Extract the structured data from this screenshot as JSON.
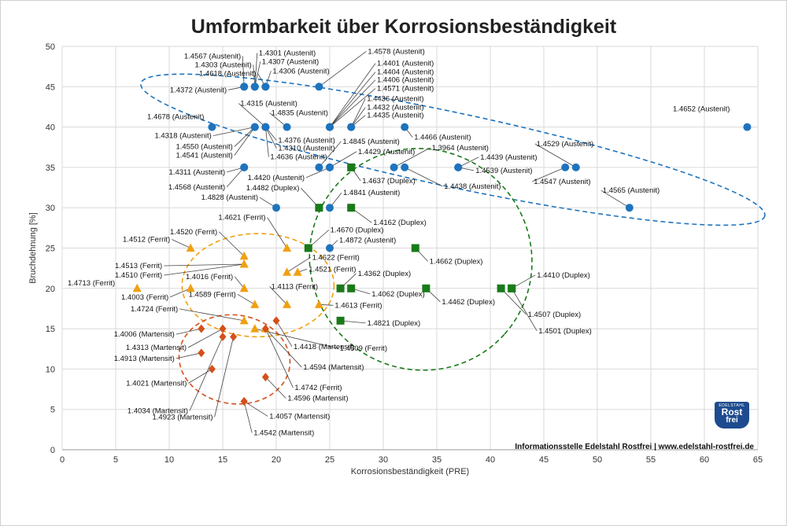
{
  "chart_data": {
    "type": "scatter",
    "title": "Umformbarkeit über Korrosionsbeständigkeit",
    "xlabel": "Korrosionsbeständigkeit (PRE)",
    "ylabel": "Bruchdehnung [%]",
    "xlim": [
      0,
      65
    ],
    "ylim": [
      0,
      50
    ],
    "xticks": [
      0,
      5,
      10,
      15,
      20,
      25,
      30,
      35,
      40,
      45,
      50,
      55,
      60,
      65
    ],
    "yticks": [
      0,
      5,
      10,
      15,
      20,
      25,
      30,
      35,
      40,
      45,
      50
    ],
    "grid": true,
    "legend": "none",
    "colors": {
      "Austenit": "#1e73be",
      "Duplex": "#1a7a1a",
      "Ferrit": "#f0a010",
      "Martensit": "#d4501a"
    },
    "series": [
      {
        "name": "Austenit",
        "marker": "circle",
        "points": [
          {
            "label": "1.4567 (Austenit)",
            "x": 17,
            "y": 45
          },
          {
            "label": "1.4303 (Austenit)",
            "x": 18,
            "y": 45
          },
          {
            "label": "1.4618 (Austenit)",
            "x": 19,
            "y": 45
          },
          {
            "label": "1.4372 (Austenit)",
            "x": 17,
            "y": 45
          },
          {
            "label": "1.4301 (Austenit)",
            "x": 18,
            "y": 45
          },
          {
            "label": "1.4307 (Austenit)",
            "x": 18,
            "y": 45
          },
          {
            "label": "1.4306 (Austenit)",
            "x": 19,
            "y": 45
          },
          {
            "label": "1.4578 (Austenit)",
            "x": 24,
            "y": 45
          },
          {
            "label": "1.4401 (Austenit)",
            "x": 25,
            "y": 40
          },
          {
            "label": "1.4404 (Austenit)",
            "x": 25,
            "y": 40
          },
          {
            "label": "1.4406 (Austenit)",
            "x": 25,
            "y": 40
          },
          {
            "label": "1.4571 (Austenit)",
            "x": 25,
            "y": 40
          },
          {
            "label": "1.4436 (Austenit)",
            "x": 27,
            "y": 40
          },
          {
            "label": "1.4432 (Austenit)",
            "x": 27,
            "y": 40
          },
          {
            "label": "1.4435 (Austenit)",
            "x": 27,
            "y": 40
          },
          {
            "label": "1.4678 (Austenit)",
            "x": 14,
            "y": 40
          },
          {
            "label": "1.4315 (Austenit)",
            "x": 19,
            "y": 40
          },
          {
            "label": "1.4835 (Austenit)",
            "x": 21,
            "y": 40
          },
          {
            "label": "1.4318 (Austenit)",
            "x": 18,
            "y": 40
          },
          {
            "label": "1.4376 (Austenit)",
            "x": 19,
            "y": 40
          },
          {
            "label": "1.4310 (Austenit)",
            "x": 19,
            "y": 40
          },
          {
            "label": "1.4636 (Austenit)",
            "x": 19,
            "y": 40
          },
          {
            "label": "1.4550 (Austenit)",
            "x": 18,
            "y": 40
          },
          {
            "label": "1.4541 (Austenit)",
            "x": 18,
            "y": 40
          },
          {
            "label": "1.4466 (Austenit)",
            "x": 32,
            "y": 40
          },
          {
            "label": "1.4652 (Austenit)",
            "x": 64,
            "y": 40
          },
          {
            "label": "1.4311 (Austenit)",
            "x": 17,
            "y": 35
          },
          {
            "label": "1.4568 (Austenit)",
            "x": 17,
            "y": 35
          },
          {
            "label": "1.4845 (Austenit)",
            "x": 24,
            "y": 35
          },
          {
            "label": "1.4420 (Austenit)",
            "x": 25,
            "y": 35
          },
          {
            "label": "1.4429 (Austenit)",
            "x": 25,
            "y": 35
          },
          {
            "label": "1.3964 (Austenit)",
            "x": 31,
            "y": 35
          },
          {
            "label": "1.4438 (Austenit)",
            "x": 32,
            "y": 35
          },
          {
            "label": "1.4439 (Austenit)",
            "x": 37,
            "y": 35
          },
          {
            "label": "1.4539 (Austenit)",
            "x": 37,
            "y": 35
          },
          {
            "label": "1.4529 (Austenit)",
            "x": 48,
            "y": 35
          },
          {
            "label": "1.4547 (Austenit)",
            "x": 47,
            "y": 35
          },
          {
            "label": "1.4828 (Austenit)",
            "x": 20,
            "y": 30
          },
          {
            "label": "1.4841 (Austenit)",
            "x": 25,
            "y": 30
          },
          {
            "label": "1.4565 (Austenit)",
            "x": 53,
            "y": 30
          },
          {
            "label": "1.4872 (Austenit)",
            "x": 25,
            "y": 25
          }
        ]
      },
      {
        "name": "Duplex",
        "marker": "square",
        "points": [
          {
            "label": "1.4637 (Duplex)",
            "x": 27,
            "y": 35
          },
          {
            "label": "1.4482 (Duplex)",
            "x": 24,
            "y": 30
          },
          {
            "label": "1.4162 (Duplex)",
            "x": 27,
            "y": 30
          },
          {
            "label": "1.4670 (Duplex)",
            "x": 23,
            "y": 25
          },
          {
            "label": "1.4662 (Duplex)",
            "x": 33,
            "y": 25
          },
          {
            "label": "1.4362 (Duplex)",
            "x": 26,
            "y": 20
          },
          {
            "label": "1.4062 (Duplex)",
            "x": 27,
            "y": 20
          },
          {
            "label": "1.4462 (Duplex)",
            "x": 34,
            "y": 20
          },
          {
            "label": "1.4410 (Duplex)",
            "x": 42,
            "y": 20
          },
          {
            "label": "1.4507 (Duplex)",
            "x": 41,
            "y": 20
          },
          {
            "label": "1.4501 (Duplex)",
            "x": 42,
            "y": 20
          },
          {
            "label": "1.4821 (Duplex)",
            "x": 26,
            "y": 16
          }
        ]
      },
      {
        "name": "Ferrit",
        "marker": "triangle",
        "points": [
          {
            "label": "1.4512 (Ferrit)",
            "x": 12,
            "y": 25
          },
          {
            "label": "1.4621 (Ferrit)",
            "x": 21,
            "y": 25
          },
          {
            "label": "1.4520 (Ferrit)",
            "x": 17,
            "y": 24
          },
          {
            "label": "1.4513 (Ferrit)",
            "x": 17,
            "y": 23
          },
          {
            "label": "1.4510 (Ferrit)",
            "x": 17,
            "y": 23
          },
          {
            "label": "1.4622 (Ferrit)",
            "x": 21,
            "y": 22
          },
          {
            "label": "1.4521 (Ferrit)",
            "x": 22,
            "y": 22
          },
          {
            "label": "1.4016 (Ferrit)",
            "x": 17,
            "y": 20
          },
          {
            "label": "1.4713 (Ferrit)",
            "x": 7,
            "y": 20
          },
          {
            "label": "1.4003 (Ferrit)",
            "x": 12,
            "y": 20
          },
          {
            "label": "1.4113 (Ferrit)",
            "x": 21,
            "y": 18
          },
          {
            "label": "1.4613 (Ferrit)",
            "x": 24,
            "y": 18
          },
          {
            "label": "1.4589 (Ferrit)",
            "x": 18,
            "y": 18
          },
          {
            "label": "1.4724 (Ferrit)",
            "x": 17,
            "y": 16
          },
          {
            "label": "1.4509 (Ferrit)",
            "x": 18,
            "y": 15
          },
          {
            "label": "1.4742 (Ferrit)",
            "x": 19,
            "y": 15
          }
        ]
      },
      {
        "name": "Martensit",
        "marker": "diamond",
        "points": [
          {
            "label": "1.4006 (Martensit)",
            "x": 13,
            "y": 15
          },
          {
            "label": "1.4313 (Martensit)",
            "x": 15,
            "y": 15
          },
          {
            "label": "1.4913 (Martensit)",
            "x": 13,
            "y": 12
          },
          {
            "label": "1.4021 (Martensit)",
            "x": 14,
            "y": 10
          },
          {
            "label": "1.4418 (Martensit)",
            "x": 20,
            "y": 16
          },
          {
            "label": "1.4594 (Martensit)",
            "x": 19,
            "y": 15
          },
          {
            "label": "1.4596 (Martensit)",
            "x": 19,
            "y": 9
          },
          {
            "label": "1.4034 (Martensit)",
            "x": 15,
            "y": 14
          },
          {
            "label": "1.4923 (Martensit)",
            "x": 16,
            "y": 14
          },
          {
            "label": "1.4057 (Martensit)",
            "x": 17,
            "y": 6
          },
          {
            "label": "1.4542 (Martensit)",
            "x": 17,
            "y": 6
          }
        ]
      }
    ]
  },
  "footer": {
    "source": "Informationsstelle Edelstahl Rostfrei | www.edelstahl-rostfrei.de",
    "logo_top": "EDELSTAHL",
    "logo_mid": "Rost",
    "logo_bottom": "frei"
  }
}
